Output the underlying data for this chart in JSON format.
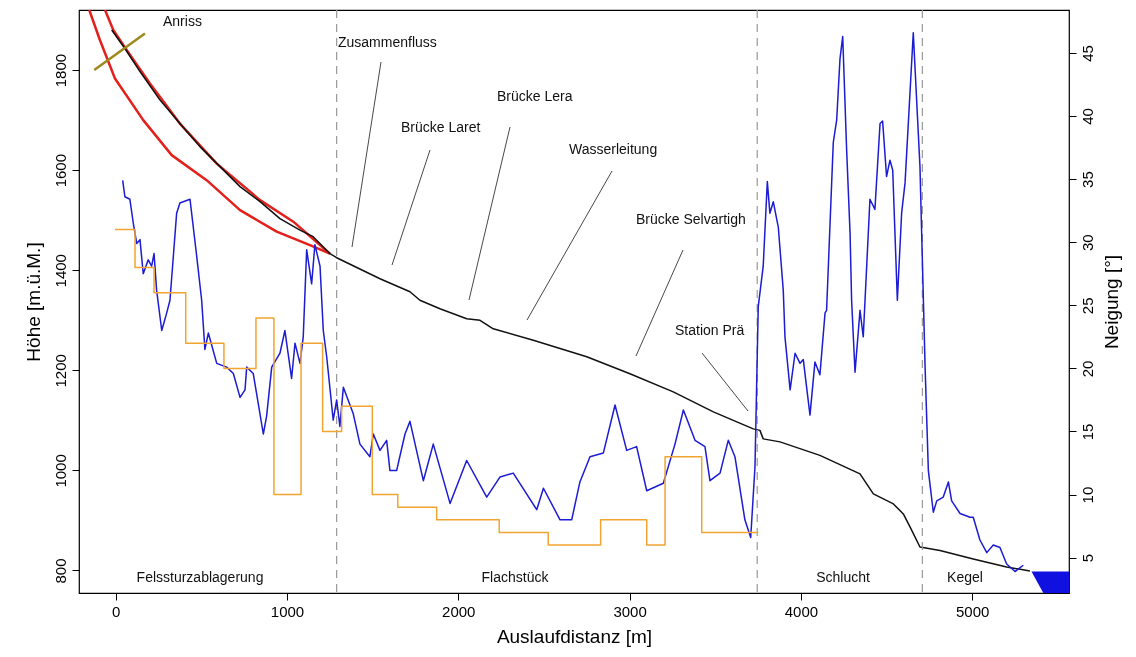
{
  "chart_data": {
    "type": "line",
    "xlabel": "Auslaufdistanz [m]",
    "ylabel": "Höhe [m.ü.M.]",
    "y2label": "Neigung [°]",
    "xlim": [
      -214,
      5565
    ],
    "xticks": [
      0,
      1000,
      2000,
      3000,
      4000,
      5000
    ],
    "ylim": [
      755,
      1920
    ],
    "yticks": [
      800,
      1000,
      1200,
      1400,
      1600,
      1800
    ],
    "y2lim": [
      2.2,
      48.4
    ],
    "y2ticks": [
      5,
      10,
      15,
      20,
      25,
      30,
      35,
      40,
      45
    ],
    "series": [
      {
        "color": "#e3201b",
        "x": [
          -154,
          -92,
          -4,
          161,
          327,
          531,
          726,
          940,
          1134,
          1251
        ],
        "values": [
          1920,
          1860,
          1783,
          1700,
          1630,
          1580,
          1520,
          1477,
          1450,
          1433
        ]
      },
      {
        "color": "#e3201b",
        "x": [
          -62,
          -14,
          64,
          200,
          375,
          590,
          843,
          1037,
          1251
        ],
        "values": [
          1920,
          1880,
          1840,
          1773,
          1693,
          1613,
          1540,
          1497,
          1433
        ]
      },
      {
        "color": "#111111",
        "x": [
          -23,
          54,
          142,
          259,
          375,
          492,
          609,
          726,
          843,
          959,
          1076,
          1153,
          1251,
          1290,
          1543,
          1718,
          1776,
          1893,
          2049,
          2127,
          2204,
          2438,
          2750,
          3002,
          3255,
          3489,
          3722,
          3761,
          3780,
          3878,
          4111,
          4345,
          4423,
          4540,
          4598,
          4637,
          4695,
          4812,
          5006,
          5201,
          5337
        ],
        "values": [
          1880,
          1843,
          1797,
          1740,
          1693,
          1647,
          1607,
          1567,
          1537,
          1503,
          1480,
          1467,
          1433,
          1425,
          1383,
          1357,
          1340,
          1323,
          1303,
          1300,
          1283,
          1260,
          1227,
          1193,
          1157,
          1117,
          1083,
          1080,
          1063,
          1057,
          1030,
          993,
          953,
          933,
          913,
          887,
          847,
          840,
          823,
          807,
          799
        ]
      },
      {
        "color": "#9c8a1e",
        "x": [
          -125,
          171
        ],
        "values": [
          1800,
          1873
        ]
      },
      {
        "axis": "y2",
        "color": "#1c1cd4",
        "x": [
          41,
          54,
          83,
          103,
          123,
          142,
          161,
          190,
          210,
          224,
          239,
          269,
          298,
          317,
          356,
          375,
          434,
          473,
          502,
          521,
          541,
          590,
          648,
          687,
          726,
          755,
          765,
          803,
          862,
          881,
          911,
          959,
          988,
          1027,
          1047,
          1076,
          1095,
          1115,
          1144,
          1163,
          1193,
          1212,
          1232,
          1270,
          1290,
          1309,
          1329,
          1387,
          1426,
          1484,
          1504,
          1543,
          1582,
          1601,
          1640,
          1689,
          1718,
          1796,
          1854,
          1952,
          2049,
          2166,
          2244,
          2321,
          2458,
          2497,
          2594,
          2662,
          2710,
          2769,
          2847,
          2915,
          2983,
          3041,
          3100,
          3197,
          3265,
          3314,
          3382,
          3440,
          3469,
          3528,
          3576,
          3615,
          3673,
          3707,
          3732,
          3751,
          3780,
          3804,
          3819,
          3839,
          3868,
          3897,
          3907,
          3937,
          3966,
          3995,
          4014,
          4053,
          4082,
          4111,
          4141,
          4150,
          4189,
          4209,
          4228,
          4244,
          4267,
          4287,
          4296,
          4316,
          4345,
          4364,
          4403,
          4432,
          4462,
          4477,
          4500,
          4520,
          4536,
          4563,
          4588,
          4608,
          4656,
          4695,
          4715,
          4725,
          4744,
          4773,
          4793,
          4831,
          4861,
          4880,
          4929,
          4987,
          5006,
          5045,
          5085,
          5123,
          5162,
          5201,
          5250,
          5298
        ],
        "values": [
          34.9,
          33.6,
          33.4,
          31.5,
          29.9,
          30.2,
          27.5,
          28.6,
          28.1,
          29.1,
          26.2,
          23.0,
          24.4,
          25.4,
          32.3,
          33.1,
          33.4,
          28.9,
          25.4,
          21.5,
          22.8,
          20.4,
          20.1,
          19.6,
          17.7,
          18.3,
          20.1,
          19.6,
          14.8,
          16.2,
          20.1,
          21.2,
          23.0,
          19.2,
          22.0,
          20.4,
          22.5,
          29.4,
          26.7,
          29.8,
          28.1,
          23.0,
          20.9,
          15.9,
          17.5,
          15.4,
          18.5,
          16.4,
          14.0,
          13.0,
          14.8,
          13.5,
          14.3,
          11.9,
          11.9,
          14.8,
          15.8,
          11.1,
          14.0,
          9.3,
          12.7,
          9.8,
          11.4,
          11.7,
          8.8,
          10.5,
          8.0,
          8.0,
          11.0,
          13.0,
          13.3,
          17.1,
          13.5,
          13.8,
          10.3,
          10.9,
          14.0,
          16.7,
          14.3,
          13.8,
          11.1,
          11.7,
          14.3,
          13.0,
          8.0,
          6.6,
          12.2,
          24.9,
          28.1,
          34.8,
          32.3,
          33.2,
          31.2,
          26.2,
          22.5,
          18.3,
          21.2,
          20.4,
          20.7,
          16.3,
          20.5,
          19.5,
          24.4,
          24.6,
          37.9,
          39.7,
          44.5,
          46.3,
          37.3,
          30.7,
          25.4,
          19.7,
          24.6,
          22.5,
          33.4,
          32.6,
          39.4,
          39.6,
          35.2,
          36.5,
          35.7,
          25.4,
          32.3,
          34.7,
          46.6,
          36.0,
          25.4,
          20.1,
          11.9,
          8.6,
          9.5,
          9.8,
          11.0,
          9.5,
          8.5,
          8.2,
          8.2,
          6.4,
          5.4,
          6.0,
          5.8,
          4.5,
          3.9,
          4.4
        ]
      },
      {
        "type": "step",
        "axis": "y2",
        "color": "#f2a431",
        "x": [
          -4,
          113,
          224,
          409,
          632,
          819,
          924,
          1082,
          1208,
          1319,
          1498,
          1647,
          1874,
          2239,
          2525,
          2831,
          3100,
          3207,
          3421,
          3751
        ],
        "values": [
          31,
          28,
          26,
          22,
          20,
          24,
          10,
          22,
          15,
          17,
          10,
          9,
          8,
          7,
          6,
          8,
          6,
          13,
          7,
          7
        ]
      }
    ],
    "ref_lines": [
      {
        "axis": "x",
        "value": 1290,
        "color": "#999999",
        "line_style": "dashed"
      },
      {
        "axis": "x",
        "value": 3745,
        "color": "#999999",
        "line_style": "dashed"
      },
      {
        "axis": "x",
        "value": 4709,
        "color": "#999999",
        "line_style": "dashed"
      }
    ],
    "annotations": [
      "Anriss",
      "Zusammenfluss",
      "Brücke Laret",
      "Brücke Lera",
      "Wasserleitung",
      "Brücke Selvartigh",
      "Station Prä",
      "Felssturzablagerung",
      "Flachstück",
      "Schlucht",
      "Kegel"
    ]
  }
}
